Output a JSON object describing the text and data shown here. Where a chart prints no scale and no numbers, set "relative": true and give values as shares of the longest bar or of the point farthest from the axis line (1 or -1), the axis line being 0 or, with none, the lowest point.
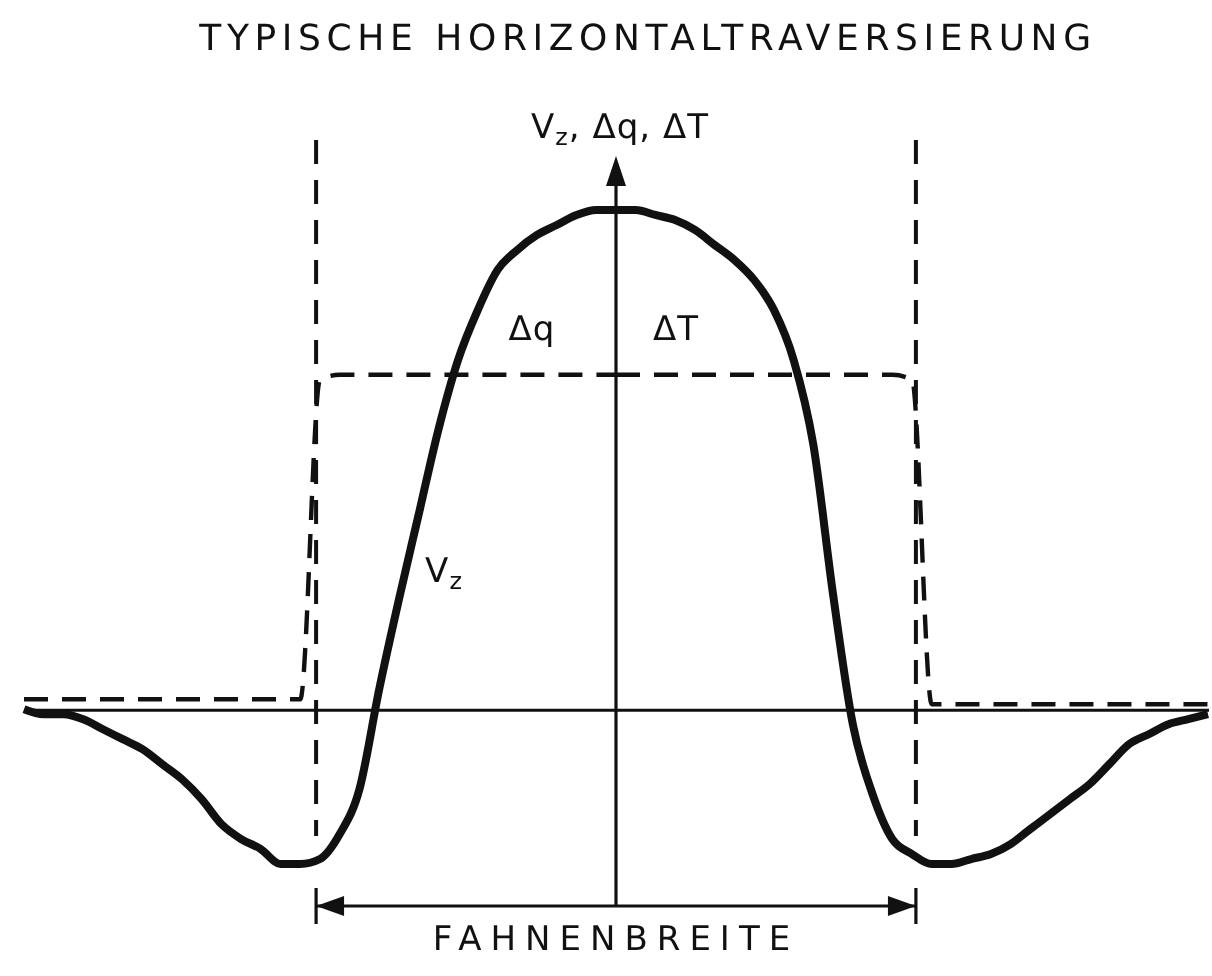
{
  "chart_data": {
    "type": "line",
    "title": "TYPISCHE HORIZONTALTRAVERSIERUNG",
    "ylabel": "V$_{z}$, Δq, ΔT",
    "annotations": [
      "FAHNENBREITE"
    ],
    "relative": true,
    "categories": [
      null,
      null,
      null,
      null,
      null,
      null,
      null,
      null,
      null,
      null,
      null,
      null,
      null,
      null,
      null,
      null,
      null,
      null,
      null,
      null,
      null,
      null,
      null,
      null,
      null,
      null,
      null,
      null,
      null,
      null,
      null,
      null,
      null,
      null,
      null,
      null,
      null,
      null,
      null,
      null,
      null,
      null,
      null,
      null,
      null,
      null,
      null,
      null,
      null,
      null,
      null,
      null,
      null,
      null,
      null,
      null,
      null,
      null,
      null,
      null,
      null
    ],
    "series": [
      {
        "name": "V$_{z}$",
        "color": "#111111",
        "line_style": "solid",
        "values": [
          0,
          -0.01,
          -0.01,
          -0.02,
          -0.04,
          -0.06,
          -0.08,
          -0.11,
          -0.14,
          -0.18,
          -0.23,
          -0.26,
          -0.28,
          -0.31,
          -0.31,
          -0.3,
          -0.25,
          -0.16,
          0.04,
          0.22,
          0.39,
          0.56,
          0.7,
          0.8,
          0.88,
          0.92,
          0.95,
          0.97,
          0.99,
          1,
          1,
          1,
          0.99,
          0.98,
          0.96,
          0.93,
          0.9,
          0.86,
          0.8,
          0.7,
          0.53,
          0.23,
          -0.03,
          -0.17,
          -0.26,
          -0.29,
          -0.31,
          -0.31,
          -0.3,
          -0.29,
          -0.27,
          -0.24,
          -0.21,
          -0.18,
          -0.15,
          -0.11,
          -0.07,
          -0.05,
          -0.03,
          -0.02,
          -0.01
        ]
      },
      {
        "name": "Δq",
        "color": "#111111",
        "line_style": "dashed",
        "values": [
          0.02,
          0.02,
          0.02,
          0.02,
          0.02,
          0.02,
          0.02,
          0.02,
          0.02,
          0.02,
          0.02,
          0.02,
          0.02,
          0.02,
          0.02,
          0.66,
          0.67,
          0.67,
          0.67,
          0.67,
          0.67,
          0.67,
          0.67,
          0.67,
          0.67,
          0.67,
          0.67,
          0.67,
          0.67,
          0.67,
          0.67,
          null,
          null,
          null,
          null,
          null,
          null,
          null,
          null,
          null,
          null,
          null,
          null,
          null,
          null,
          null,
          null,
          null,
          null,
          null,
          null,
          null,
          null,
          null,
          null,
          null,
          null,
          null,
          null,
          null,
          null
        ]
      },
      {
        "name": "ΔT",
        "color": "#111111",
        "line_style": "dashed",
        "values": [
          null,
          null,
          null,
          null,
          null,
          null,
          null,
          null,
          null,
          null,
          null,
          null,
          null,
          null,
          null,
          null,
          null,
          null,
          null,
          null,
          null,
          null,
          null,
          null,
          null,
          null,
          null,
          null,
          null,
          null,
          0.67,
          0.67,
          0.67,
          0.67,
          0.67,
          0.67,
          0.67,
          0.67,
          0.67,
          0.67,
          0.67,
          0.67,
          0.67,
          0.67,
          0.67,
          0.66,
          0.01,
          0.01,
          0.01,
          0.01,
          0.01,
          0.01,
          0.01,
          0.01,
          0.01,
          0.01,
          0.01,
          0.01,
          0.01,
          0.01,
          0.01
        ]
      }
    ]
  }
}
